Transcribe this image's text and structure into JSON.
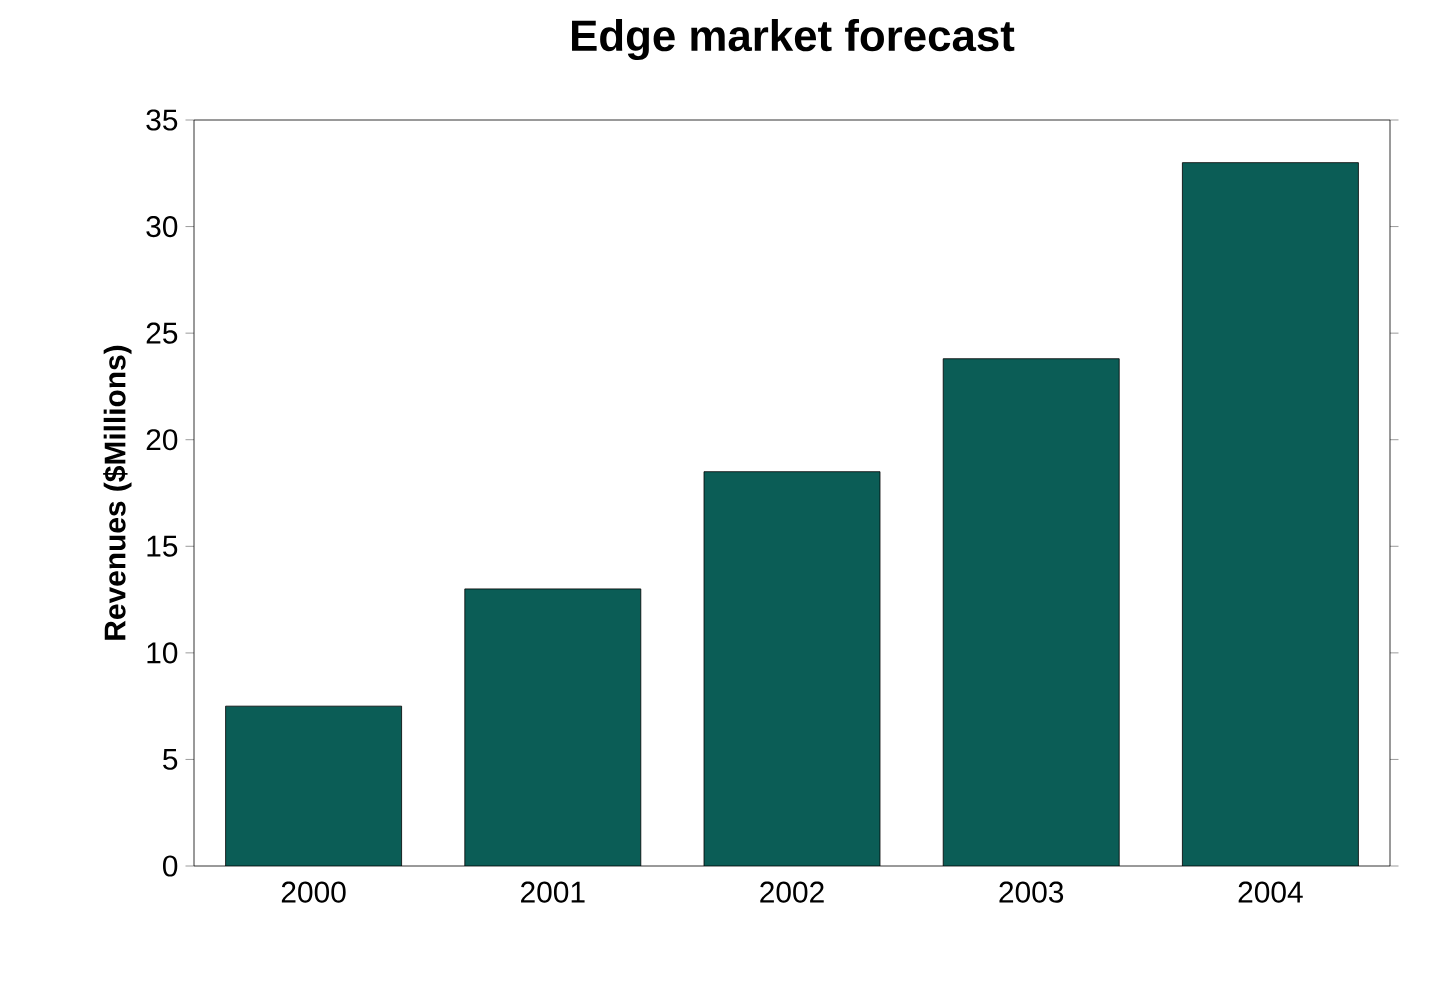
{
  "chart_data": {
    "type": "bar",
    "title": "Edge market forecast",
    "ylabel": "Revenues ($Millions)",
    "categories": [
      "2000",
      "2001",
      "2002",
      "2003",
      "2004"
    ],
    "values": [
      7.5,
      13,
      18.5,
      23.8,
      33
    ],
    "color": "#0b5d56",
    "ylim": [
      0,
      35
    ],
    "yticks": [
      0,
      5,
      10,
      15,
      20,
      25,
      30,
      35
    ],
    "grid": false
  }
}
